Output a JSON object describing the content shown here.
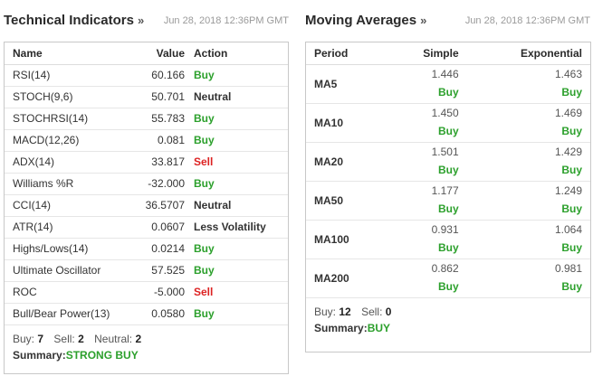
{
  "technical": {
    "title": "Technical Indicators",
    "chevron": "»",
    "timestamp": "Jun 28, 2018 12:36PM GMT",
    "headers": {
      "name": "Name",
      "value": "Value",
      "action": "Action"
    },
    "rows": [
      {
        "name": "RSI(14)",
        "value": "60.166",
        "action": "Buy",
        "kind": "buy"
      },
      {
        "name": "STOCH(9,6)",
        "value": "50.701",
        "action": "Neutral",
        "kind": "neutral"
      },
      {
        "name": "STOCHRSI(14)",
        "value": "55.783",
        "action": "Buy",
        "kind": "buy"
      },
      {
        "name": "MACD(12,26)",
        "value": "0.081",
        "action": "Buy",
        "kind": "buy"
      },
      {
        "name": "ADX(14)",
        "value": "33.817",
        "action": "Sell",
        "kind": "sell"
      },
      {
        "name": "Williams %R",
        "value": "-32.000",
        "action": "Buy",
        "kind": "buy"
      },
      {
        "name": "CCI(14)",
        "value": "36.5707",
        "action": "Neutral",
        "kind": "neutral"
      },
      {
        "name": "ATR(14)",
        "value": "0.0607",
        "action": "Less Volatility",
        "kind": "neutral"
      },
      {
        "name": "Highs/Lows(14)",
        "value": "0.0214",
        "action": "Buy",
        "kind": "buy"
      },
      {
        "name": "Ultimate Oscillator",
        "value": "57.525",
        "action": "Buy",
        "kind": "buy"
      },
      {
        "name": "ROC",
        "value": "-5.000",
        "action": "Sell",
        "kind": "sell"
      },
      {
        "name": "Bull/Bear Power(13)",
        "value": "0.0580",
        "action": "Buy",
        "kind": "buy"
      }
    ],
    "counts": {
      "buy_label": "Buy:",
      "buy": "7",
      "sell_label": "Sell:",
      "sell": "2",
      "neutral_label": "Neutral:",
      "neutral": "2"
    },
    "summary": {
      "label": "Summary:",
      "value": "STRONG BUY"
    }
  },
  "moving": {
    "title": "Moving Averages",
    "chevron": "»",
    "timestamp": "Jun 28, 2018 12:36PM GMT",
    "headers": {
      "period": "Period",
      "simple": "Simple",
      "exponential": "Exponential"
    },
    "rows": [
      {
        "period": "MA5",
        "simple": "1.446",
        "simple_action": "Buy",
        "exp": "1.463",
        "exp_action": "Buy"
      },
      {
        "period": "MA10",
        "simple": "1.450",
        "simple_action": "Buy",
        "exp": "1.469",
        "exp_action": "Buy"
      },
      {
        "period": "MA20",
        "simple": "1.501",
        "simple_action": "Buy",
        "exp": "1.429",
        "exp_action": "Buy"
      },
      {
        "period": "MA50",
        "simple": "1.177",
        "simple_action": "Buy",
        "exp": "1.249",
        "exp_action": "Buy"
      },
      {
        "period": "MA100",
        "simple": "0.931",
        "simple_action": "Buy",
        "exp": "1.064",
        "exp_action": "Buy"
      },
      {
        "period": "MA200",
        "simple": "0.862",
        "simple_action": "Buy",
        "exp": "0.981",
        "exp_action": "Buy"
      }
    ],
    "counts": {
      "buy_label": "Buy:",
      "buy": "12",
      "sell_label": "Sell:",
      "sell": "0"
    },
    "summary": {
      "label": "Summary:",
      "value": "BUY"
    }
  },
  "colors": {
    "buy": "#2ca02c",
    "sell": "#dd2222",
    "neutral": "#333333",
    "timestamp": "#9a9a9a",
    "border": "#c8c8c8"
  }
}
